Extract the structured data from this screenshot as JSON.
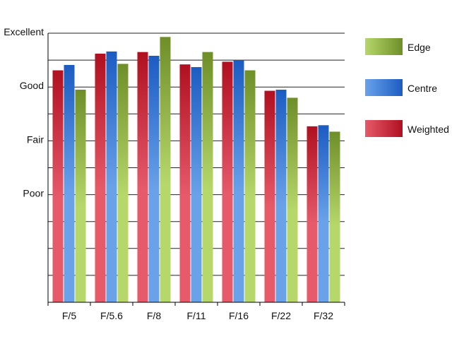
{
  "chart_data": {
    "type": "bar",
    "categories": [
      "F/5",
      "F/5.6",
      "F/8",
      "F/11",
      "F/16",
      "F/22",
      "F/32"
    ],
    "series": [
      {
        "name": "Weighted",
        "values": [
          3.31,
          3.62,
          3.65,
          3.42,
          3.47,
          2.93,
          2.27
        ],
        "colors": [
          "#e65a6a",
          "#b01020"
        ]
      },
      {
        "name": "Centre",
        "values": [
          3.41,
          3.66,
          3.58,
          3.37,
          3.5,
          2.95,
          2.29
        ],
        "colors": [
          "#6aa2ea",
          "#1c5cc2"
        ]
      },
      {
        "name": "Edge",
        "values": [
          2.95,
          3.43,
          3.93,
          3.65,
          3.31,
          2.8,
          2.17
        ],
        "colors": [
          "#b6d76a",
          "#6e8e28"
        ]
      }
    ],
    "yticks": [
      {
        "value": 1,
        "label": "Poor"
      },
      {
        "value": 2,
        "label": "Fair"
      },
      {
        "value": 3,
        "label": "Good"
      },
      {
        "value": 4,
        "label": "Excellent"
      }
    ],
    "ylim": [
      -1,
      4
    ],
    "grid": true,
    "legend_position": "right",
    "legend_order": [
      "Edge",
      "Centre",
      "Weighted"
    ],
    "title": "",
    "xlabel": "",
    "ylabel": ""
  }
}
